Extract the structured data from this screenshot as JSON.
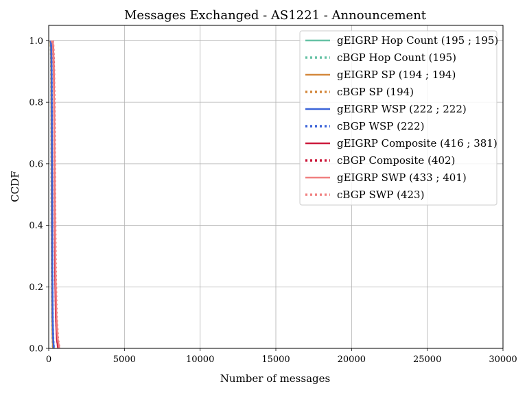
{
  "chart_data": {
    "type": "line",
    "title": "Messages Exchanged - AS1221 - Announcement",
    "xlabel": "Number of messages",
    "ylabel": "CCDF",
    "xlim": [
      0,
      30000
    ],
    "ylim": [
      0,
      1.05
    ],
    "xticks": [
      0,
      5000,
      10000,
      15000,
      20000,
      25000,
      30000
    ],
    "yticks": [
      0.0,
      0.2,
      0.4,
      0.6,
      0.8,
      1.0
    ],
    "xtick_labels": [
      "0",
      "5000",
      "10000",
      "15000",
      "20000",
      "25000",
      "30000"
    ],
    "ytick_labels": [
      "0.0",
      "0.2",
      "0.4",
      "0.6",
      "0.8",
      "1.0"
    ],
    "grid": true,
    "legend_position": "top-right",
    "series": [
      {
        "name": "gEIGRP Hop Count (195 ; 195)",
        "color": "#66c2a5",
        "style": "solid",
        "x": [
          120,
          150,
          170,
          185,
          190,
          195,
          200,
          210,
          230,
          260,
          290
        ],
        "y": [
          1.0,
          0.98,
          0.9,
          0.75,
          0.6,
          0.5,
          0.4,
          0.25,
          0.1,
          0.03,
          0.0
        ]
      },
      {
        "name": "cBGP Hop Count (195)",
        "color": "#66c2a5",
        "style": "dotted",
        "x": [
          120,
          150,
          170,
          185,
          190,
          195,
          200,
          210,
          230,
          260,
          290
        ],
        "y": [
          1.0,
          0.98,
          0.9,
          0.75,
          0.6,
          0.5,
          0.4,
          0.25,
          0.1,
          0.03,
          0.0
        ]
      },
      {
        "name": "gEIGRP SP (194 ; 194)",
        "color": "#d4883c",
        "style": "solid",
        "x": [
          120,
          150,
          170,
          184,
          189,
          194,
          199,
          210,
          228,
          258,
          288
        ],
        "y": [
          1.0,
          0.98,
          0.9,
          0.75,
          0.6,
          0.5,
          0.4,
          0.25,
          0.1,
          0.03,
          0.0
        ]
      },
      {
        "name": "cBGP SP (194)",
        "color": "#d4883c",
        "style": "dotted",
        "x": [
          120,
          150,
          170,
          184,
          189,
          194,
          199,
          210,
          228,
          258,
          288
        ],
        "y": [
          1.0,
          0.98,
          0.9,
          0.75,
          0.6,
          0.5,
          0.4,
          0.25,
          0.1,
          0.03,
          0.0
        ]
      },
      {
        "name": "gEIGRP WSP (222 ; 222)",
        "color": "#3b64d8",
        "style": "solid",
        "x": [
          140,
          170,
          195,
          210,
          216,
          222,
          228,
          240,
          262,
          300,
          340
        ],
        "y": [
          1.0,
          0.98,
          0.9,
          0.75,
          0.6,
          0.5,
          0.4,
          0.25,
          0.1,
          0.03,
          0.0
        ]
      },
      {
        "name": "cBGP WSP (222)",
        "color": "#3b64d8",
        "style": "dotted",
        "x": [
          140,
          170,
          195,
          210,
          216,
          222,
          228,
          240,
          262,
          300,
          340
        ],
        "y": [
          1.0,
          0.98,
          0.9,
          0.75,
          0.6,
          0.5,
          0.4,
          0.25,
          0.1,
          0.03,
          0.0
        ]
      },
      {
        "name": "gEIGRP Composite (416 ; 381)",
        "color": "#cc1a3c",
        "style": "solid",
        "x": [
          250,
          300,
          340,
          365,
          375,
          381,
          395,
          420,
          470,
          540,
          620
        ],
        "y": [
          1.0,
          0.98,
          0.9,
          0.75,
          0.6,
          0.5,
          0.4,
          0.25,
          0.1,
          0.03,
          0.0
        ]
      },
      {
        "name": "cBGP Composite (402)",
        "color": "#cc1a3c",
        "style": "dotted",
        "x": [
          250,
          310,
          355,
          385,
          396,
          402,
          412,
          435,
          480,
          550,
          630
        ],
        "y": [
          1.0,
          0.98,
          0.9,
          0.75,
          0.6,
          0.5,
          0.4,
          0.25,
          0.1,
          0.03,
          0.0
        ]
      },
      {
        "name": "gEIGRP SWP (433 ; 401)",
        "color": "#f08080",
        "style": "solid",
        "x": [
          180,
          280,
          330,
          370,
          390,
          401,
          420,
          450,
          510,
          600,
          700
        ],
        "y": [
          1.0,
          0.99,
          0.9,
          0.75,
          0.6,
          0.5,
          0.4,
          0.25,
          0.1,
          0.03,
          0.0
        ]
      },
      {
        "name": "cBGP SWP (423)",
        "color": "#f08080",
        "style": "dotted",
        "x": [
          190,
          300,
          350,
          395,
          412,
          423,
          440,
          470,
          530,
          620,
          710
        ],
        "y": [
          1.0,
          0.99,
          0.9,
          0.75,
          0.6,
          0.5,
          0.4,
          0.25,
          0.1,
          0.03,
          0.0
        ]
      }
    ]
  }
}
